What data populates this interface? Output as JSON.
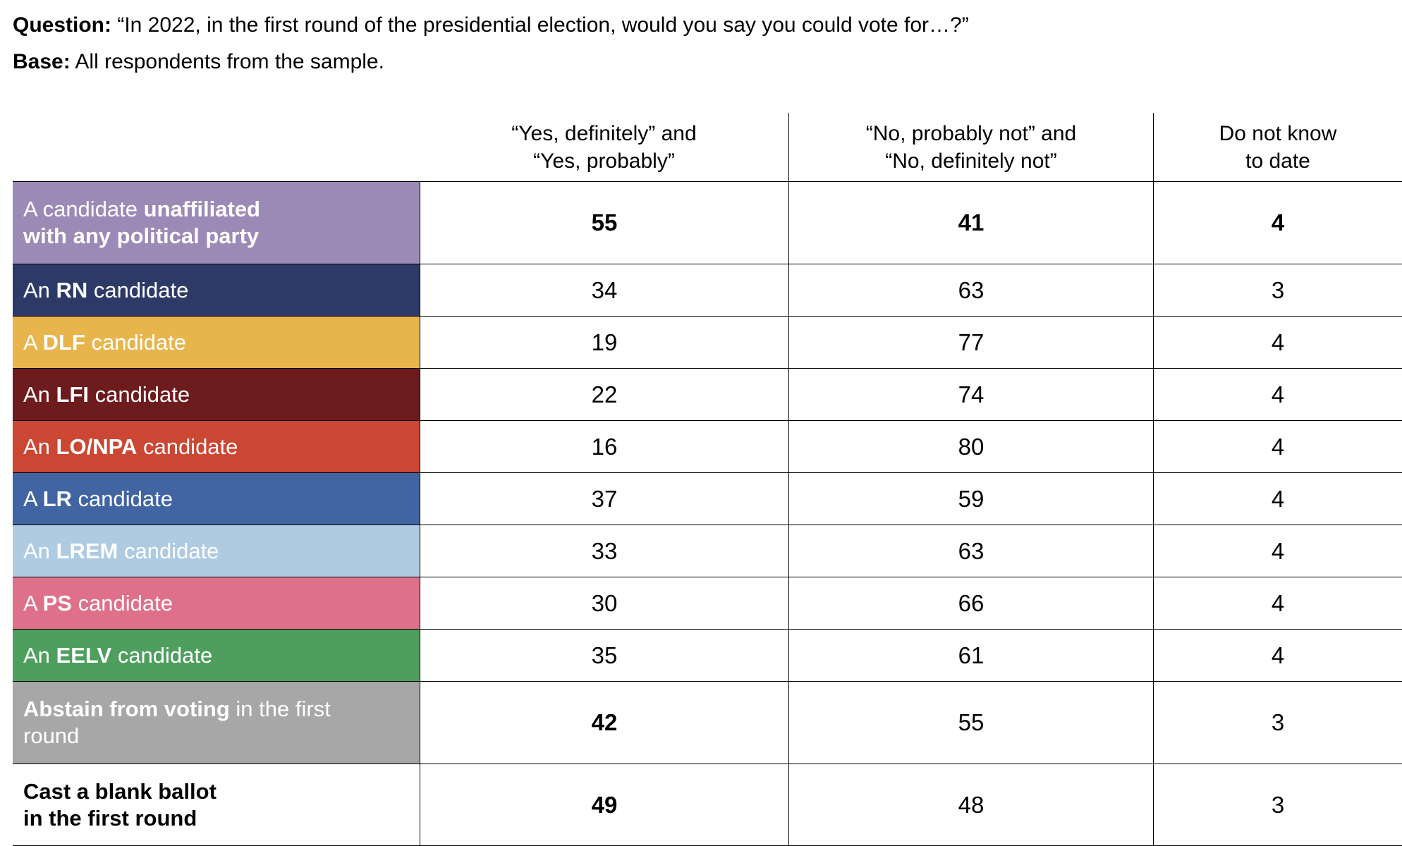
{
  "meta": {
    "question_label": "Question:",
    "question_text": " “In 2022, in the first round of the presidential election, would you say you could vote for…?”",
    "base_label": "Base:",
    "base_text": " All respondents from the sample."
  },
  "table": {
    "columns": [
      "“Yes, definitely” and\n“Yes, probably”",
      "“No, probably not” and\n“No, definitely not”",
      "Do not know\nto date"
    ],
    "rows": [
      {
        "label_parts": [
          {
            "text": "A candidate ",
            "bold": false
          },
          {
            "text": "unaffiliated\nwith any political party",
            "bold": true
          }
        ],
        "color": "#9c8ab6",
        "text_color": "#ffffff",
        "tall": true,
        "values": [
          "55",
          "41",
          "4"
        ],
        "values_bold": [
          true,
          true,
          true
        ]
      },
      {
        "label_parts": [
          {
            "text": "An ",
            "bold": false
          },
          {
            "text": "RN",
            "bold": true
          },
          {
            "text": " candidate",
            "bold": false
          }
        ],
        "color": "#2d3a67",
        "text_color": "#ffffff",
        "tall": false,
        "values": [
          "34",
          "63",
          "3"
        ],
        "values_bold": [
          false,
          false,
          false
        ]
      },
      {
        "label_parts": [
          {
            "text": "A ",
            "bold": false
          },
          {
            "text": "DLF",
            "bold": true
          },
          {
            "text": " candidate",
            "bold": false
          }
        ],
        "color": "#e8b44c",
        "text_color": "#ffffff",
        "tall": false,
        "values": [
          "19",
          "77",
          "4"
        ],
        "values_bold": [
          false,
          false,
          false
        ]
      },
      {
        "label_parts": [
          {
            "text": "An ",
            "bold": false
          },
          {
            "text": "LFI",
            "bold": true
          },
          {
            "text": " candidate",
            "bold": false
          }
        ],
        "color": "#6e1b1e",
        "text_color": "#ffffff",
        "tall": false,
        "values": [
          "22",
          "74",
          "4"
        ],
        "values_bold": [
          false,
          false,
          false
        ]
      },
      {
        "label_parts": [
          {
            "text": "An ",
            "bold": false
          },
          {
            "text": "LO/NPA",
            "bold": true
          },
          {
            "text": " candidate",
            "bold": false
          }
        ],
        "color": "#cb4733",
        "text_color": "#ffffff",
        "tall": false,
        "values": [
          "16",
          "80",
          "4"
        ],
        "values_bold": [
          false,
          false,
          false
        ]
      },
      {
        "label_parts": [
          {
            "text": "A ",
            "bold": false
          },
          {
            "text": "LR",
            "bold": true
          },
          {
            "text": " candidate",
            "bold": false
          }
        ],
        "color": "#4164a3",
        "text_color": "#ffffff",
        "tall": false,
        "values": [
          "37",
          "59",
          "4"
        ],
        "values_bold": [
          false,
          false,
          false
        ]
      },
      {
        "label_parts": [
          {
            "text": "An ",
            "bold": false
          },
          {
            "text": "LREM",
            "bold": true
          },
          {
            "text": " candidate",
            "bold": false
          }
        ],
        "color": "#aecbe2",
        "text_color": "#ffffff",
        "tall": false,
        "values": [
          "33",
          "63",
          "4"
        ],
        "values_bold": [
          false,
          false,
          false
        ]
      },
      {
        "label_parts": [
          {
            "text": "A ",
            "bold": false
          },
          {
            "text": "PS",
            "bold": true
          },
          {
            "text": " candidate",
            "bold": false
          }
        ],
        "color": "#df7089",
        "text_color": "#ffffff",
        "tall": false,
        "values": [
          "30",
          "66",
          "4"
        ],
        "values_bold": [
          false,
          false,
          false
        ]
      },
      {
        "label_parts": [
          {
            "text": "An ",
            "bold": false
          },
          {
            "text": "EELV",
            "bold": true
          },
          {
            "text": " candidate",
            "bold": false
          }
        ],
        "color": "#4e9e5e",
        "text_color": "#ffffff",
        "tall": false,
        "values": [
          "35",
          "61",
          "4"
        ],
        "values_bold": [
          false,
          false,
          false
        ]
      },
      {
        "label_parts": [
          {
            "text": "Abstain from voting",
            "bold": true
          },
          {
            "text": " in the first\nround",
            "bold": false
          }
        ],
        "color": "#a7a7a7",
        "text_color": "#ffffff",
        "tall": true,
        "values": [
          "42",
          "55",
          "3"
        ],
        "values_bold": [
          true,
          false,
          false
        ]
      },
      {
        "label_parts": [
          {
            "text": "Cast a blank ballot\nin the first round",
            "bold": true
          }
        ],
        "color": "#ffffff",
        "text_color": "#000000",
        "tall": true,
        "values": [
          "49",
          "48",
          "3"
        ],
        "values_bold": [
          true,
          false,
          false
        ]
      }
    ]
  },
  "chart_data": {
    "type": "table",
    "title": "In 2022, in the first round of the presidential election, would you say you could vote for…?",
    "base": "All respondents from the sample.",
    "columns": [
      "“Yes, definitely” and “Yes, probably”",
      "“No, probably not” and “No, definitely not”",
      "Do not know to date"
    ],
    "rows": [
      {
        "label": "A candidate unaffiliated with any political party",
        "yes": 55,
        "no": 41,
        "dont_know": 4
      },
      {
        "label": "An RN candidate",
        "yes": 34,
        "no": 63,
        "dont_know": 3
      },
      {
        "label": "A DLF candidate",
        "yes": 19,
        "no": 77,
        "dont_know": 4
      },
      {
        "label": "An LFI candidate",
        "yes": 22,
        "no": 74,
        "dont_know": 4
      },
      {
        "label": "An LO/NPA candidate",
        "yes": 16,
        "no": 80,
        "dont_know": 4
      },
      {
        "label": "A LR candidate",
        "yes": 37,
        "no": 59,
        "dont_know": 4
      },
      {
        "label": "An LREM candidate",
        "yes": 33,
        "no": 63,
        "dont_know": 4
      },
      {
        "label": "A PS candidate",
        "yes": 30,
        "no": 66,
        "dont_know": 4
      },
      {
        "label": "An EELV candidate",
        "yes": 35,
        "no": 61,
        "dont_know": 4
      },
      {
        "label": "Abstain from voting in the first round",
        "yes": 42,
        "no": 55,
        "dont_know": 3
      },
      {
        "label": "Cast a blank ballot in the first round",
        "yes": 49,
        "no": 48,
        "dont_know": 3
      }
    ]
  }
}
